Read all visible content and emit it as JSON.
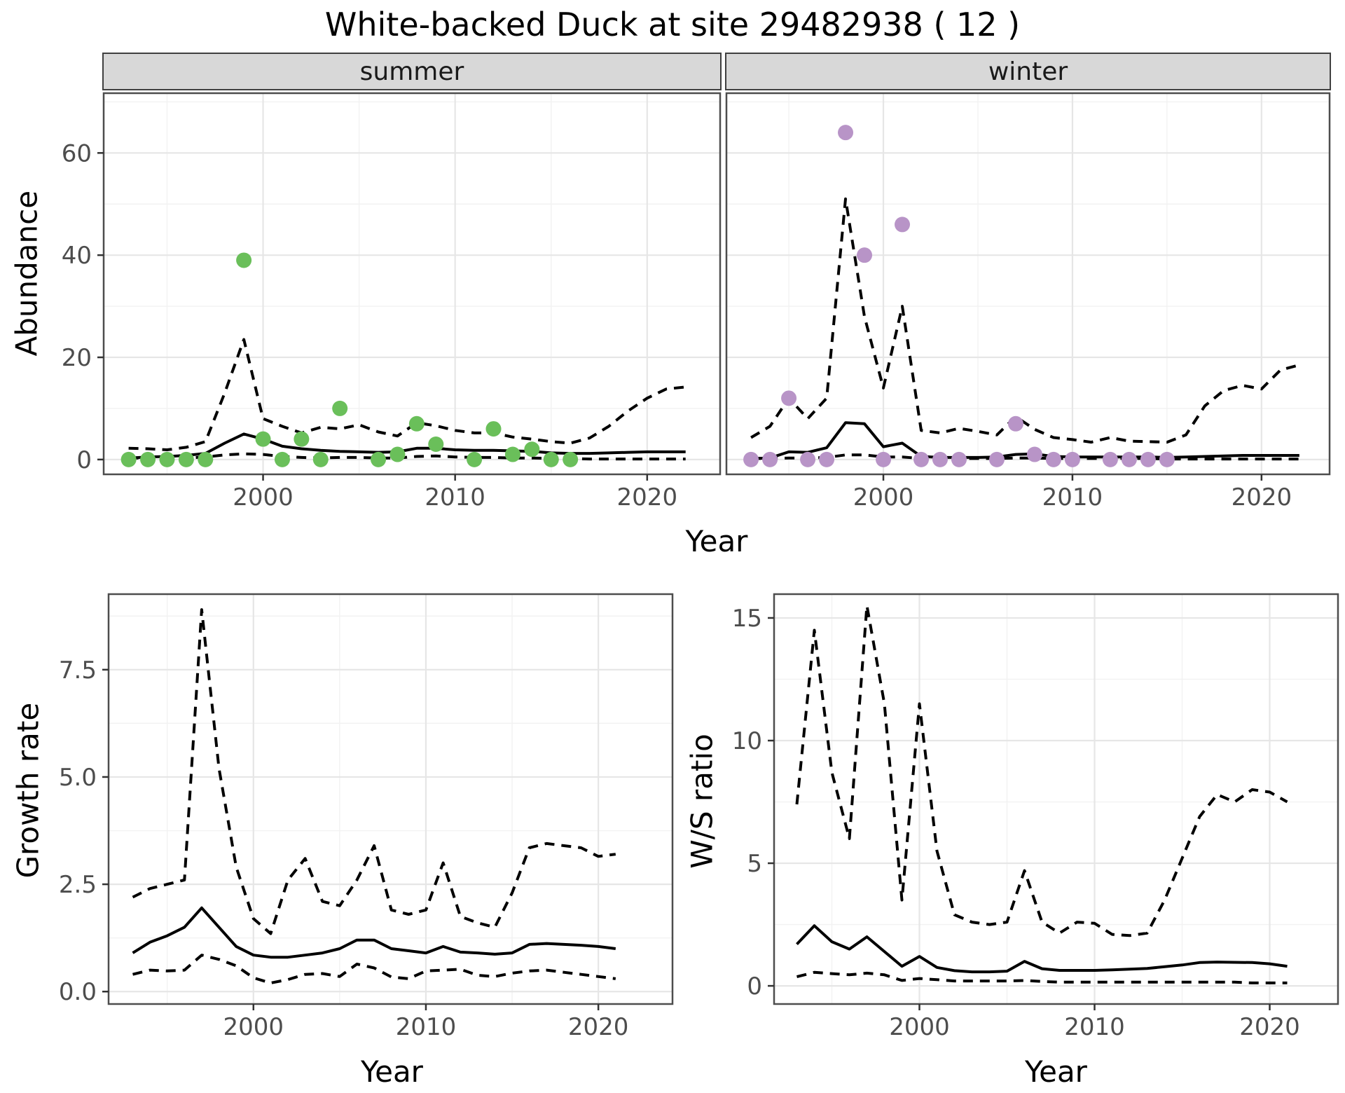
{
  "title": "White-backed Duck at site 29482938 ( 12 )",
  "colors": {
    "summer_points": "#6abf5a",
    "winter_points": "#b894c7",
    "line": "#000000",
    "strip_background": "#d8d8d8",
    "panel_border": "#4d4d4d",
    "grid_major": "#e6e6e6",
    "grid_minor": "#f2f2f2",
    "tick_text": "#4d4d4d",
    "tick_mark": "#333333"
  },
  "chart_data": [
    {
      "id": "summer",
      "type": "line+scatter",
      "facet_label": "summer",
      "xlabel": "Year",
      "ylabel": "Abundance",
      "xlim": [
        1991.7,
        2023.8
      ],
      "ylim": [
        -2.9,
        71.7
      ],
      "x_ticks": {
        "values": [
          2000,
          2010,
          2020
        ],
        "labels": [
          "2000",
          "2010",
          "2020"
        ],
        "minor": [
          1995,
          2005,
          2015
        ]
      },
      "y_ticks": {
        "values": [
          0,
          20,
          40,
          60
        ],
        "labels": [
          "0",
          "20",
          "40",
          "60"
        ],
        "minor": [
          10,
          30,
          50,
          70
        ]
      },
      "year_start": 1993,
      "series": [
        {
          "name": "median",
          "style": "solid",
          "values": [
            0.3,
            0.5,
            0.6,
            0.8,
            1.2,
            3.2,
            5.0,
            4.0,
            2.6,
            2.1,
            1.8,
            1.6,
            1.5,
            1.4,
            1.5,
            2.2,
            2.2,
            1.9,
            1.8,
            1.8,
            1.7,
            1.6,
            1.3,
            1.2,
            1.2,
            1.3,
            1.4,
            1.5,
            1.5,
            1.5
          ]
        },
        {
          "name": "upper_ci",
          "style": "dashed",
          "values": [
            2.2,
            2.1,
            1.9,
            2.4,
            3.5,
            13.0,
            23.5,
            8.0,
            6.5,
            5.2,
            6.3,
            6.0,
            6.8,
            5.4,
            4.6,
            7.2,
            6.6,
            5.7,
            5.2,
            5.2,
            4.4,
            4.0,
            3.5,
            3.2,
            4.2,
            6.5,
            9.5,
            12.0,
            13.8,
            14.2
          ]
        },
        {
          "name": "lower_ci",
          "style": "dashed",
          "values": [
            0.3,
            0.3,
            0.3,
            0.3,
            0.5,
            0.9,
            1.1,
            1.0,
            0.6,
            0.4,
            0.3,
            0.4,
            0.4,
            0.3,
            0.3,
            0.6,
            0.7,
            0.5,
            0.4,
            0.4,
            0.3,
            0.3,
            0.2,
            0.2,
            0.1,
            0.1,
            0.1,
            0.1,
            0.1,
            0.1
          ]
        }
      ],
      "points": {
        "color": "#6abf5a",
        "data": [
          [
            1993,
            0
          ],
          [
            1994,
            0
          ],
          [
            1995,
            0
          ],
          [
            1996,
            0
          ],
          [
            1997,
            0
          ],
          [
            1999,
            39
          ],
          [
            2000,
            4
          ],
          [
            2001,
            0
          ],
          [
            2002,
            4
          ],
          [
            2003,
            0
          ],
          [
            2004,
            10
          ],
          [
            2006,
            0
          ],
          [
            2007,
            1
          ],
          [
            2008,
            7
          ],
          [
            2009,
            3
          ],
          [
            2011,
            0
          ],
          [
            2012,
            6
          ],
          [
            2013,
            1
          ],
          [
            2014,
            2
          ],
          [
            2015,
            0
          ],
          [
            2016,
            0
          ]
        ]
      }
    },
    {
      "id": "winter",
      "type": "line+scatter",
      "facet_label": "winter",
      "xlabel": "Year",
      "ylabel": "Abundance",
      "xlim": [
        1991.7,
        2023.6
      ],
      "ylim": [
        -2.9,
        71.7
      ],
      "x_ticks": {
        "values": [
          2000,
          2010,
          2020
        ],
        "labels": [
          "2000",
          "2010",
          "2020"
        ],
        "minor": [
          1995,
          2005,
          2015
        ]
      },
      "y_ticks": {
        "values": [
          0,
          20,
          40,
          60
        ],
        "labels": [
          "0",
          "20",
          "40",
          "60"
        ],
        "minor": [
          10,
          30,
          50,
          70
        ]
      },
      "year_start": 1993,
      "series": [
        {
          "name": "median",
          "style": "solid",
          "values": [
            0.2,
            0.3,
            1.5,
            1.4,
            2.3,
            7.2,
            7.0,
            2.5,
            3.2,
            0.6,
            0.4,
            0.4,
            0.4,
            0.5,
            1.0,
            1.1,
            0.6,
            0.5,
            0.5,
            0.5,
            0.5,
            0.5,
            0.4,
            0.5,
            0.6,
            0.7,
            0.8,
            0.8,
            0.8,
            0.8
          ]
        },
        {
          "name": "upper_ci",
          "style": "dashed",
          "values": [
            4.3,
            6.5,
            12.0,
            8.0,
            12.0,
            51.0,
            28.0,
            14.0,
            30.0,
            5.7,
            5.2,
            6.1,
            5.5,
            4.8,
            8.4,
            5.9,
            4.3,
            3.9,
            3.4,
            4.3,
            3.6,
            3.5,
            3.4,
            4.8,
            10.5,
            13.5,
            14.5,
            13.8,
            17.5,
            18.5
          ]
        },
        {
          "name": "lower_ci",
          "style": "dashed",
          "values": [
            0.2,
            0.2,
            0.3,
            0.3,
            0.4,
            0.9,
            0.9,
            0.5,
            0.5,
            0.2,
            0.2,
            0.2,
            0.2,
            0.2,
            0.3,
            0.3,
            0.2,
            0.2,
            0.2,
            0.2,
            0.2,
            0.2,
            0.1,
            0.1,
            0.1,
            0.1,
            0.1,
            0.1,
            0.1,
            0.1
          ]
        }
      ],
      "points": {
        "color": "#b894c7",
        "data": [
          [
            1993,
            0
          ],
          [
            1994,
            0
          ],
          [
            1995,
            12
          ],
          [
            1996,
            0
          ],
          [
            1997,
            0
          ],
          [
            1998,
            64
          ],
          [
            1999,
            40
          ],
          [
            2000,
            0
          ],
          [
            2001,
            46
          ],
          [
            2002,
            0
          ],
          [
            2003,
            0
          ],
          [
            2004,
            0
          ],
          [
            2006,
            0
          ],
          [
            2007,
            7
          ],
          [
            2008,
            1
          ],
          [
            2009,
            0
          ],
          [
            2010,
            0
          ],
          [
            2012,
            0
          ],
          [
            2013,
            0
          ],
          [
            2014,
            0
          ],
          [
            2015,
            0
          ]
        ]
      }
    },
    {
      "id": "growth",
      "type": "line",
      "facet_label": "",
      "xlabel": "Year",
      "ylabel": "Growth rate",
      "xlim": [
        1991.6,
        2024.3
      ],
      "ylim": [
        -0.29,
        9.26
      ],
      "x_ticks": {
        "values": [
          2000,
          2010,
          2020
        ],
        "labels": [
          "2000",
          "2010",
          "2020"
        ],
        "minor": [
          1995,
          2005,
          2015
        ]
      },
      "y_ticks": {
        "values": [
          0,
          2.5,
          5,
          7.5
        ],
        "labels": [
          "0.0",
          "2.5",
          "5.0",
          "7.5"
        ],
        "minor": [
          1.25,
          3.75,
          6.25,
          8.75
        ]
      },
      "year_start": 1993,
      "series": [
        {
          "name": "median",
          "style": "solid",
          "values": [
            0.9,
            1.15,
            1.3,
            1.5,
            1.95,
            1.5,
            1.05,
            0.85,
            0.8,
            0.8,
            0.85,
            0.9,
            1.0,
            1.2,
            1.2,
            1.0,
            0.95,
            0.9,
            1.05,
            0.92,
            0.9,
            0.87,
            0.9,
            1.1,
            1.12,
            1.1,
            1.08,
            1.05,
            1.0
          ]
        },
        {
          "name": "upper_ci",
          "style": "dashed",
          "values": [
            2.2,
            2.4,
            2.5,
            2.6,
            8.9,
            5.2,
            2.9,
            1.7,
            1.35,
            2.6,
            3.1,
            2.1,
            2.0,
            2.6,
            3.4,
            1.9,
            1.8,
            1.9,
            3.0,
            1.75,
            1.6,
            1.5,
            2.3,
            3.35,
            3.45,
            3.4,
            3.35,
            3.15,
            3.2
          ]
        },
        {
          "name": "lower_ci",
          "style": "dashed",
          "values": [
            0.4,
            0.5,
            0.48,
            0.5,
            0.85,
            0.75,
            0.6,
            0.32,
            0.2,
            0.28,
            0.4,
            0.42,
            0.35,
            0.64,
            0.55,
            0.34,
            0.3,
            0.48,
            0.5,
            0.52,
            0.38,
            0.35,
            0.43,
            0.48,
            0.5,
            0.45,
            0.4,
            0.35,
            0.3
          ]
        }
      ],
      "points": null
    },
    {
      "id": "ws",
      "type": "line",
      "facet_label": "",
      "xlabel": "Year",
      "ylabel": "W/S ratio",
      "xlim": [
        1991.7,
        2023.9
      ],
      "ylim": [
        -0.74,
        15.97
      ],
      "x_ticks": {
        "values": [
          2000,
          2010,
          2020
        ],
        "labels": [
          "2000",
          "2010",
          "2020"
        ],
        "minor": [
          1995,
          2005,
          2015
        ]
      },
      "y_ticks": {
        "values": [
          0,
          5,
          10,
          15
        ],
        "labels": [
          "0",
          "5",
          "10",
          "15"
        ],
        "minor": [
          2.5,
          7.5,
          12.5
        ]
      },
      "year_start": 1993,
      "series": [
        {
          "name": "median",
          "style": "solid",
          "values": [
            1.7,
            2.45,
            1.8,
            1.5,
            2.0,
            1.4,
            0.8,
            1.2,
            0.75,
            0.62,
            0.57,
            0.57,
            0.6,
            1.0,
            0.7,
            0.63,
            0.63,
            0.63,
            0.65,
            0.68,
            0.71,
            0.78,
            0.85,
            0.95,
            0.97,
            0.96,
            0.95,
            0.9,
            0.8
          ]
        },
        {
          "name": "upper_ci",
          "style": "dashed",
          "values": [
            7.4,
            14.5,
            8.7,
            6.0,
            15.5,
            11.5,
            3.5,
            11.5,
            5.5,
            2.9,
            2.6,
            2.5,
            2.6,
            4.7,
            2.6,
            2.15,
            2.6,
            2.55,
            2.1,
            2.05,
            2.15,
            3.5,
            5.2,
            6.9,
            7.8,
            7.5,
            8.0,
            7.9,
            7.5
          ]
        },
        {
          "name": "lower_ci",
          "style": "dashed",
          "values": [
            0.37,
            0.55,
            0.5,
            0.45,
            0.52,
            0.45,
            0.22,
            0.3,
            0.25,
            0.2,
            0.2,
            0.2,
            0.2,
            0.22,
            0.18,
            0.15,
            0.15,
            0.15,
            0.15,
            0.15,
            0.15,
            0.15,
            0.15,
            0.15,
            0.15,
            0.15,
            0.12,
            0.12,
            0.12
          ]
        }
      ],
      "points": null
    }
  ]
}
